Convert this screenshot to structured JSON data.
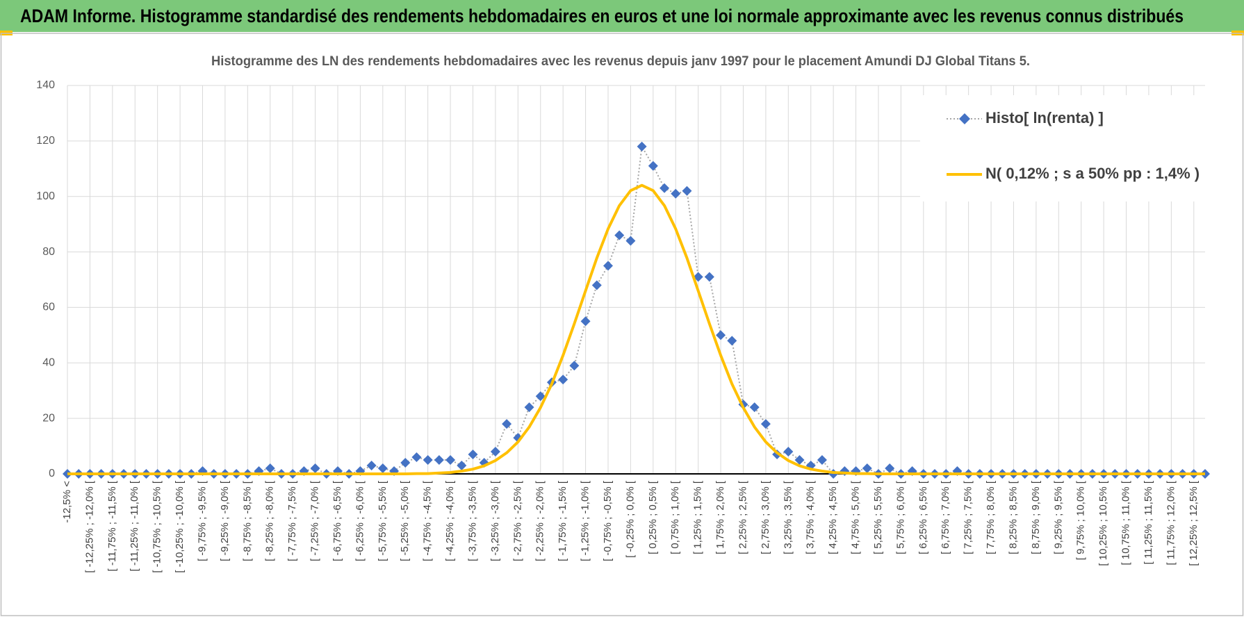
{
  "header": {
    "title": "ADAM Informe. Histogramme standardisé des rendements hebdomadaires en euros et une loi normale approximante avec les revenus connus distribués"
  },
  "chart_data": {
    "type": "line",
    "title": "Histogramme des LN des rendements hebdomadaires avec les revenus depuis janv 1997 pour le placement Amundi DJ Global Titans 5.",
    "categories": [
      "-12,5% <",
      null,
      "[ -12,25% ; -12,0% [",
      null,
      "[ -11,75% ; -11,5% [",
      null,
      "[ -11,25% ; -11,0% [",
      null,
      "[ -10,75% ; -10,5% [",
      null,
      "[ -10,25% ; -10,0% [",
      null,
      "[ -9,75% ; -9,5% [",
      null,
      "[ -9,25% ; -9,0% [",
      null,
      "[ -8,75% ; -8,5% [",
      null,
      "[ -8,25% ; -8,0% [",
      null,
      "[ -7,75% ; -7,5% [",
      null,
      "[ -7,25% ; -7,0% [",
      null,
      "[ -6,75% ; -6,5% [",
      null,
      "[ -6,25% ; -6,0% [",
      null,
      "[ -5,75% ; -5,5% [",
      null,
      "[ -5,25% ; -5,0% [",
      null,
      "[ -4,75% ; -4,5% [",
      null,
      "[ -4,25% ; -4,0% [",
      null,
      "[ -3,75% ; -3,5% [",
      null,
      "[ -3,25% ; -3,0% [",
      null,
      "[ -2,75% ; -2,5% [",
      null,
      "[ -2,25% ; -2,0% [",
      null,
      "[ -1,75% ; -1,5% [",
      null,
      "[ -1,25% ; -1,0% [",
      null,
      "[ -0,75% ; -0,5% [",
      null,
      "[ -0,25% ; 0,0% [",
      null,
      "[ 0,25% ; 0,5% [",
      null,
      "[ 0,75% ; 1,0% [",
      null,
      "[ 1,25% ; 1,5% [",
      null,
      "[ 1,75% ; 2,0% [",
      null,
      "[ 2,25% ; 2,5% [",
      null,
      "[ 2,75% ; 3,0% [",
      null,
      "[ 3,25% ; 3,5% [",
      null,
      "[ 3,75% ; 4,0% [",
      null,
      "[ 4,25% ; 4,5% [",
      null,
      "[ 4,75% ; 5,0% [",
      null,
      "[ 5,25% ; 5,5% [",
      null,
      "[ 5,75% ; 6,0% [",
      null,
      "[ 6,25% ; 6,5% [",
      null,
      "[ 6,75% ; 7,0% [",
      null,
      "[ 7,25% ; 7,5% [",
      null,
      "[ 7,75% ; 8,0% [",
      null,
      "[ 8,25% ; 8,5% [",
      null,
      "[ 8,75% ; 9,0% [",
      null,
      "[ 9,25% ; 9,5% [",
      null,
      "[ 9,75% ; 10,0% [",
      null,
      "[ 10,25% ; 10,5% [",
      null,
      "[ 10,75% ; 11,0% [",
      null,
      "[ 11,25% ; 11,5% [",
      null,
      "[ 11,75% ; 12,0% [",
      null,
      "[ 12,25% ; 12,5% [",
      null
    ],
    "series": [
      {
        "name": "Histo[ ln(renta) ]",
        "color": "#4472c4",
        "marker": "diamond",
        "line_color": "#a5a5a5",
        "line_style": "dotted",
        "values": [
          0,
          0,
          0,
          0,
          0,
          0,
          0,
          0,
          0,
          0,
          0,
          0,
          1,
          0,
          0,
          0,
          0,
          1,
          2,
          0,
          0,
          1,
          2,
          0,
          1,
          0,
          1,
          3,
          2,
          1,
          4,
          6,
          5,
          5,
          5,
          3,
          7,
          4,
          8,
          18,
          13,
          24,
          28,
          33,
          34,
          39,
          55,
          68,
          75,
          86,
          84,
          118,
          111,
          103,
          101,
          102,
          71,
          71,
          50,
          48,
          25,
          24,
          18,
          7,
          8,
          5,
          3,
          5,
          0,
          1,
          1,
          2,
          0,
          2,
          0,
          1,
          0,
          0,
          0,
          1,
          0,
          0,
          0,
          0,
          0,
          0,
          0,
          0,
          0,
          0,
          0,
          0,
          0,
          0,
          0,
          0,
          0,
          0,
          0,
          0,
          0,
          0
        ]
      },
      {
        "name": "N( 0,12% ; s a 50% pp : 1,4% )",
        "color": "#ffc000",
        "line_style": "solid",
        "values": [
          0,
          0,
          0,
          0,
          0,
          0,
          0,
          0,
          0,
          0,
          0,
          0,
          0,
          0,
          0,
          0,
          0,
          0,
          0,
          0,
          0,
          0,
          0,
          0,
          0,
          0,
          0,
          0,
          0,
          0,
          0,
          0.1,
          0.1,
          0.3,
          0.5,
          1.0,
          1.7,
          2.9,
          4.8,
          7.6,
          11.5,
          16.9,
          23.9,
          32.4,
          42.7,
          54.1,
          66.0,
          77.8,
          88.3,
          96.7,
          102.1,
          104,
          102.1,
          96.7,
          88.3,
          77.8,
          66.0,
          54.1,
          42.7,
          32.4,
          23.9,
          16.9,
          11.5,
          7.6,
          4.8,
          2.9,
          1.7,
          1.0,
          0.5,
          0.3,
          0.1,
          0.1,
          0,
          0,
          0,
          0,
          0,
          0,
          0,
          0,
          0,
          0,
          0,
          0,
          0,
          0,
          0,
          0,
          0,
          0,
          0,
          0,
          0,
          0,
          0,
          0,
          0,
          0,
          0,
          0,
          0,
          0
        ]
      }
    ],
    "ylim": [
      0,
      140
    ],
    "yticks": [
      0,
      20,
      40,
      60,
      80,
      100,
      120,
      140
    ],
    "grid": true,
    "legend": "upper right"
  }
}
